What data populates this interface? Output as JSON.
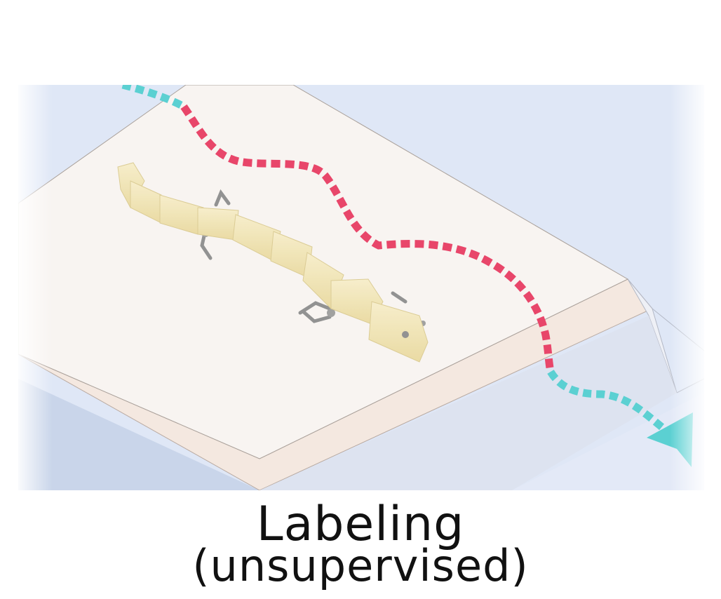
{
  "caption": {
    "title": "Labeling",
    "subtitle": "(unsupervised)"
  },
  "colors": {
    "background": "#ffffff",
    "terrain_low": "#dfe7f6",
    "terrain_low_shade": "#c9d5ea",
    "platform_top": "#f8f4f1",
    "platform_side": "#f4e8e0",
    "ramp": "#dde2ee",
    "path_labeled": "#e8466a",
    "path_unlabeled": "#5bd0d2",
    "robot_body": "#f3e7b9",
    "robot_legs": "#8a8a8a"
  },
  "icons": {
    "robot": "snake-robot-icon",
    "direction": "arrowhead-icon"
  }
}
